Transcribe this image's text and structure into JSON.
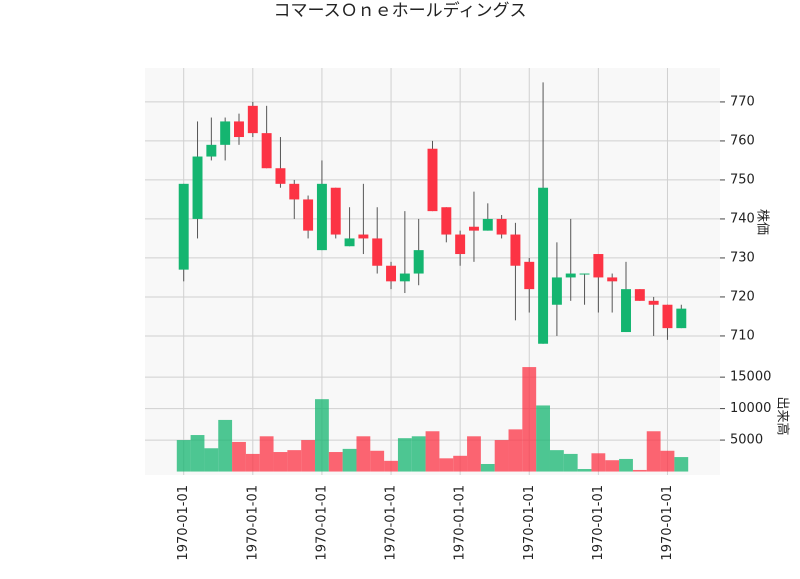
{
  "chart_data": {
    "type": "candlestick",
    "title": "コマースＯｎｅホールディングス",
    "categories": [
      "1970-01-01",
      null,
      null,
      null,
      null,
      "1970-01-01",
      null,
      null,
      null,
      null,
      "1970-01-01",
      null,
      null,
      null,
      null,
      "1970-01-01",
      null,
      null,
      null,
      null,
      "1970-01-01",
      null,
      null,
      null,
      null,
      "1970-01-01",
      null,
      null,
      null,
      null,
      "1970-01-01",
      null,
      null,
      null,
      null,
      "1970-01-01",
      null
    ],
    "xlim": [
      -2.8,
      38.8
    ],
    "open": [
      727,
      740,
      756,
      759,
      765,
      769,
      762,
      753,
      749,
      745,
      732,
      748,
      733,
      736,
      735,
      728,
      724,
      726,
      758,
      743,
      736,
      738,
      737,
      740,
      736,
      729,
      708,
      718,
      725,
      726,
      731,
      725,
      711,
      722,
      719,
      718,
      712
    ],
    "high": [
      749,
      765,
      766,
      766,
      767,
      770,
      769,
      761,
      750,
      746,
      755,
      748,
      743,
      749,
      743,
      729,
      742,
      740,
      760,
      743,
      737,
      747,
      744,
      741,
      739,
      730,
      775,
      734,
      740,
      726,
      731,
      726,
      729,
      722,
      720,
      718,
      718
    ],
    "low": [
      724,
      735,
      755,
      755,
      759,
      761,
      753,
      748,
      740,
      735,
      732,
      735,
      733,
      731,
      726,
      722,
      721,
      723,
      742,
      734,
      728,
      729,
      737,
      735,
      714,
      716,
      708,
      710,
      719,
      718,
      716,
      716,
      711,
      719,
      710,
      709,
      712
    ],
    "close": [
      749,
      756,
      759,
      765,
      761,
      762,
      753,
      749,
      745,
      737,
      749,
      736,
      735,
      735,
      728,
      724,
      726,
      732,
      742,
      736,
      731,
      737,
      740,
      736,
      728,
      722,
      748,
      725,
      726,
      726,
      725,
      724,
      722,
      719,
      718,
      712,
      717
    ],
    "up_color": "#14b570",
    "down_color": "#fc3344",
    "ylim": [
      704.6,
      778.7
    ],
    "yticks": [
      710,
      720,
      730,
      740,
      750,
      760,
      770
    ],
    "ylabel": "株価",
    "grid": true,
    "volume": {
      "values": [
        5000,
        5800,
        3700,
        8200,
        4700,
        2800,
        5600,
        3100,
        3400,
        5000,
        11500,
        3100,
        3600,
        5600,
        3300,
        1700,
        5300,
        5600,
        6400,
        2100,
        2500,
        5600,
        1200,
        5000,
        6700,
        16600,
        10500,
        3400,
        2800,
        400,
        2900,
        1800,
        2000,
        250,
        6400,
        3300,
        2300
      ],
      "ylim": [
        -550,
        18200
      ],
      "yticks": [
        5000,
        10000,
        15000
      ],
      "ylabel": "出来高"
    }
  }
}
